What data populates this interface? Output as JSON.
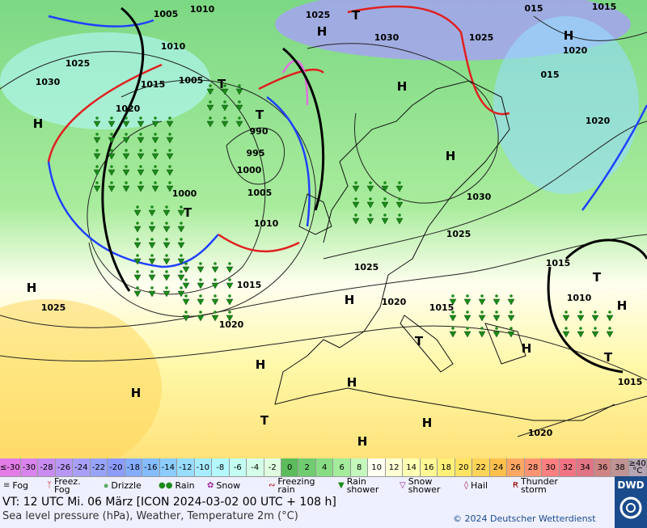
{
  "map": {
    "pressure_labels": [
      "1005",
      "1010",
      "1025",
      "1015",
      "1030",
      "1025",
      "1020",
      "1010",
      "1025",
      "1005",
      "1015",
      "1030",
      "1020",
      "990",
      "995",
      "1000",
      "1005",
      "1000",
      "1010",
      "1030",
      "1025",
      "1020",
      "1015",
      "1025",
      "1015",
      "1010",
      "1020",
      "1015",
      "1025",
      "1020",
      "1015",
      "1020",
      "015",
      "015"
    ],
    "centers": [
      "H",
      "H",
      "H",
      "H",
      "H",
      "H",
      "H",
      "H",
      "H",
      "H",
      "H",
      "H",
      "H",
      "T",
      "T",
      "T",
      "T",
      "T",
      "T",
      "T",
      "T",
      "H"
    ]
  },
  "temperature_scale": [
    {
      "label": "≤-30",
      "color": "#e47ce8"
    },
    {
      "label": "-30",
      "color": "#d884ec"
    },
    {
      "label": "-28",
      "color": "#c88cf0"
    },
    {
      "label": "-26",
      "color": "#b896f4"
    },
    {
      "label": "-24",
      "color": "#a8a0f8"
    },
    {
      "label": "-22",
      "color": "#98a4fc"
    },
    {
      "label": "-20",
      "color": "#8c9cff"
    },
    {
      "label": "-18",
      "color": "#84acff"
    },
    {
      "label": "-16",
      "color": "#84bcff"
    },
    {
      "label": "-14",
      "color": "#8cccff"
    },
    {
      "label": "-12",
      "color": "#98dcff"
    },
    {
      "label": "-10",
      "color": "#a8ecff"
    },
    {
      "label": "-8",
      "color": "#b4f8ff"
    },
    {
      "label": "-6",
      "color": "#c4fff4"
    },
    {
      "label": "-4",
      "color": "#d4ffe8"
    },
    {
      "label": "-2",
      "color": "#e0ffe0"
    },
    {
      "label": "0",
      "color": "#5cbc5c"
    },
    {
      "label": "2",
      "color": "#70cc70"
    },
    {
      "label": "4",
      "color": "#88dc84"
    },
    {
      "label": "6",
      "color": "#a4ec9c"
    },
    {
      "label": "8",
      "color": "#c4f8bc"
    },
    {
      "label": "10",
      "color": "#fffff4"
    },
    {
      "label": "12",
      "color": "#ffffd4"
    },
    {
      "label": "14",
      "color": "#ffffb4"
    },
    {
      "label": "16",
      "color": "#fff894"
    },
    {
      "label": "18",
      "color": "#fff078"
    },
    {
      "label": "20",
      "color": "#ffe464"
    },
    {
      "label": "22",
      "color": "#ffd458"
    },
    {
      "label": "24",
      "color": "#ffc04c"
    },
    {
      "label": "26",
      "color": "#ffa864"
    },
    {
      "label": "28",
      "color": "#ff9474"
    },
    {
      "label": "30",
      "color": "#ff8080"
    },
    {
      "label": "32",
      "color": "#f07484"
    },
    {
      "label": "34",
      "color": "#e07484"
    },
    {
      "label": "36",
      "color": "#d08484"
    },
    {
      "label": "38",
      "color": "#c09494"
    },
    {
      "label": "≥40 °C",
      "color": "#b4a4b4"
    }
  ],
  "weather_legend": [
    "Fog",
    "Freez. Fog",
    "Drizzle",
    "Rain",
    "Snow",
    "Freezing rain",
    "Rain shower",
    "Snow shower",
    "Hail",
    "Thunder storm"
  ],
  "footer": {
    "valid_time": "VT: 12 UTC Mi.  06 März [ICON 2024-03-02  00 UTC + 108 h]",
    "description": "Sea level pressure (hPa), Weather, Temperature 2m (°C)",
    "copyright": "© 2024 Deutscher Wetterdienst",
    "logo": "DWD"
  }
}
